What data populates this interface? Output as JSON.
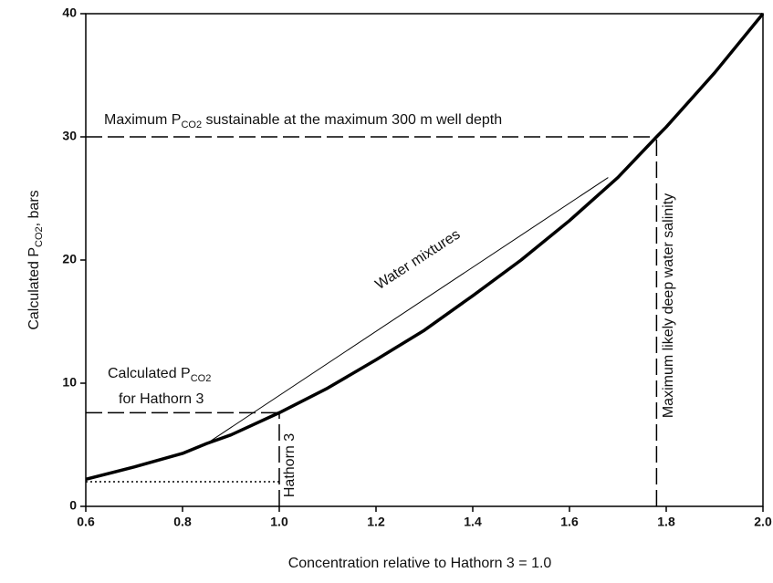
{
  "chart_data": {
    "type": "line",
    "x_label": "Concentration relative to Hathorn 3 = 1.0",
    "y_label": [
      "Calculated P",
      "CO2",
      ", bars"
    ],
    "x": [
      0.6,
      0.7,
      0.8,
      0.85,
      0.9,
      1.0,
      1.1,
      1.2,
      1.3,
      1.4,
      1.5,
      1.6,
      1.7,
      1.78,
      1.8,
      1.9,
      2.0
    ],
    "values": [
      2.2,
      3.2,
      4.3,
      5.1,
      5.8,
      7.6,
      9.6,
      11.9,
      14.3,
      17.1,
      20.0,
      23.2,
      26.7,
      30.0,
      30.8,
      35.2,
      40.0
    ],
    "color": "#000000",
    "mixture_line": {
      "label": "Water mixtures",
      "x": [
        0.85,
        1.68
      ],
      "values": [
        5.1,
        26.7
      ]
    },
    "reference_lines": [
      {
        "style": "dashed",
        "x": [
          0.6,
          1.78
        ],
        "y": [
          30,
          30
        ]
      },
      {
        "style": "dashed",
        "x": [
          1.78,
          1.78
        ],
        "y": [
          0,
          30
        ]
      },
      {
        "style": "dashed",
        "x": [
          0.6,
          1.0
        ],
        "y": [
          7.6,
          7.6
        ]
      },
      {
        "style": "dashed",
        "x": [
          1.0,
          1.0
        ],
        "y": [
          0,
          7.6
        ]
      },
      {
        "style": "dotted",
        "x": [
          0.6,
          1.0
        ],
        "y": [
          2,
          2
        ]
      }
    ],
    "annotations": {
      "max_pco2": [
        "Maximum P",
        "CO2",
        " sustainable at the maximum 300 m well depth"
      ],
      "calc_pco2": [
        "Calculated P",
        "CO2"
      ],
      "calc_pco2_line2": "for Hathorn 3",
      "hathorn": "Hathorn 3",
      "salinity": "Maximum likely deep water salinity"
    },
    "xlim": [
      0.6,
      2.0
    ],
    "ylim": [
      0,
      40
    ],
    "xticks": [
      0.6,
      0.8,
      {
        "value": 1.0,
        "label": "1.0"
      },
      1.2,
      1.4,
      1.6,
      1.8,
      {
        "value": 2.0,
        "label": "2.0"
      }
    ],
    "yticks": [
      0,
      10,
      20,
      30,
      40
    ]
  }
}
